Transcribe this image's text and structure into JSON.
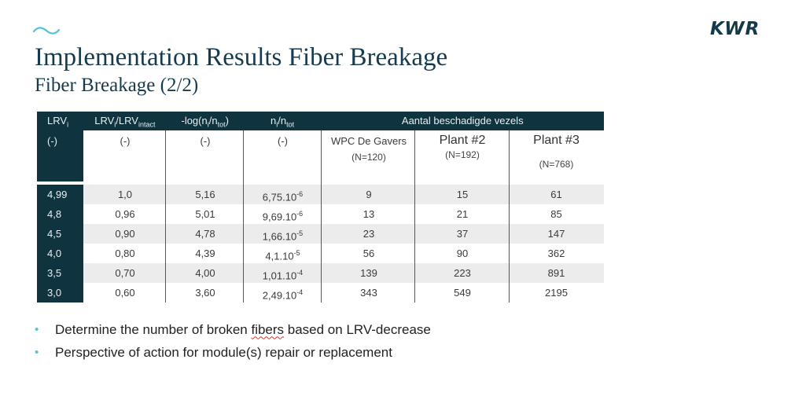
{
  "logo": "KWR",
  "title": "Implementation Results Fiber Breakage",
  "subtitle": "Fiber Breakage (2/2)",
  "table": {
    "headers": {
      "lrv": "LRV",
      "lrv_sub": "i",
      "ratio_a": "LRV",
      "ratio_a_sub": "i",
      "ratio_b": "/LRV",
      "ratio_b_sub": "intact",
      "log_a": "-log(n",
      "log_sub1": "i",
      "log_b": "/n",
      "log_sub2": "tot",
      "log_c": ")",
      "n_a": "n",
      "n_sub1": "i",
      "n_b": "/n",
      "n_sub2": "tot",
      "aantal": "Aantal beschadigde vezels"
    },
    "units": {
      "u1": "(-)",
      "u2": "(-)",
      "u3": "(-)",
      "u4": "(-)",
      "plant1_name": "WPC De Gavers",
      "plant1_n": "(N=120)",
      "plant2_name": "Plant #2",
      "plant2_n": "(N=192)",
      "plant3_name": "Plant #3",
      "plant3_n": "(N=768)"
    },
    "rows": [
      {
        "lrv": "4,99",
        "ratio": "1,0",
        "log": "5,16",
        "n_base": "6,75.10",
        "n_exp": "-6",
        "p1": "9",
        "p2": "15",
        "p3": "61"
      },
      {
        "lrv": "4,8",
        "ratio": "0,96",
        "log": "5,01",
        "n_base": "9,69.10",
        "n_exp": "-6",
        "p1": "13",
        "p2": "21",
        "p3": "85"
      },
      {
        "lrv": "4,5",
        "ratio": "0,90",
        "log": "4,78",
        "n_base": "1,66.10",
        "n_exp": "-5",
        "p1": "23",
        "p2": "37",
        "p3": "147"
      },
      {
        "lrv": "4,0",
        "ratio": "0,80",
        "log": "4,39",
        "n_base": "4,1.10",
        "n_exp": "-5",
        "p1": "56",
        "p2": "90",
        "p3": "362"
      },
      {
        "lrv": "3,5",
        "ratio": "0,70",
        "log": "4,00",
        "n_base": "1,01.10",
        "n_exp": "-4",
        "p1": "139",
        "p2": "223",
        "p3": "891"
      },
      {
        "lrv": "3,0",
        "ratio": "0,60",
        "log": "3,60",
        "n_base": "2,49.10",
        "n_exp": "-4",
        "p1": "343",
        "p2": "549",
        "p3": "2195"
      }
    ]
  },
  "bullets": {
    "b1_pre": "Determine the number of broken ",
    "b1_mark": "fibers",
    "b1_post": " based on LRV-decrease",
    "b2": "Perspective of action for module(s) repair or replacement"
  }
}
